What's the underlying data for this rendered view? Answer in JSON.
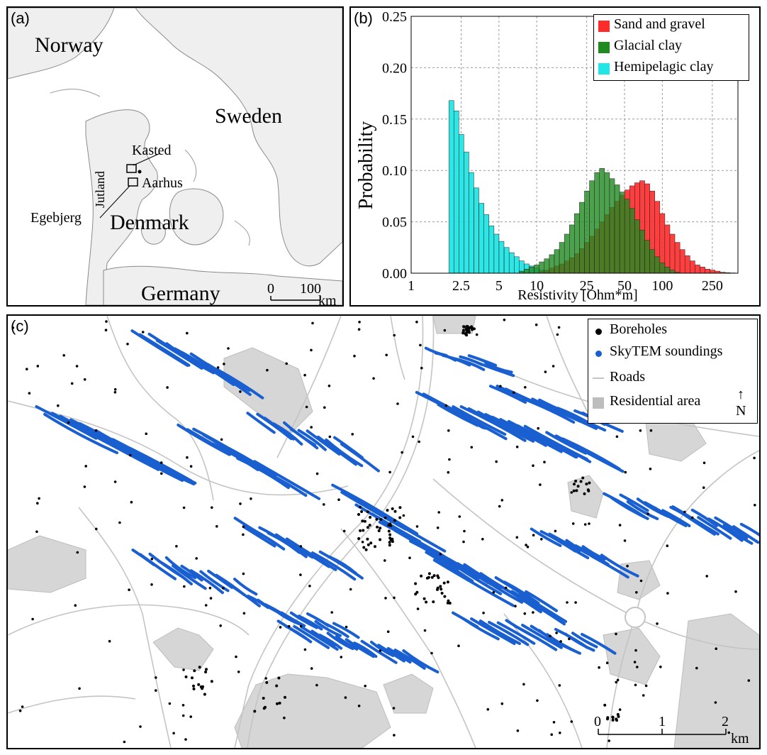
{
  "panel_a": {
    "label": "(a)",
    "places": {
      "norway": "Norway",
      "sweden": "Sweden",
      "denmark": "Denmark",
      "germany": "Germany",
      "jutland": "Jutland",
      "kasted": "Kasted",
      "aarhus": "Aarhus",
      "egebjerg": "Egebjerg"
    },
    "scale": {
      "zero": "0",
      "hundred": "100",
      "unit": "km"
    }
  },
  "panel_b": {
    "label": "(b)",
    "chart_data": {
      "type": "bar",
      "title": "",
      "xlabel": "Resistivity [Ohm*m]",
      "ylabel": "Probability",
      "x_scale": "log",
      "xlim": [
        1,
        400
      ],
      "ylim": [
        0,
        0.25
      ],
      "x_ticks": [
        "1",
        "2.5",
        "5",
        "10",
        "25",
        "50",
        "100",
        "250"
      ],
      "y_ticks": [
        "0.00",
        "0.05",
        "0.10",
        "0.15",
        "0.20",
        "0.25"
      ],
      "grid": true,
      "legend_position": "top-right",
      "colors": {
        "Sand and gravel": "#ff2a2a",
        "Glacial clay": "#1f8a1f",
        "Hemipelagic clay": "#22e6e6"
      },
      "series": [
        {
          "name": "Hemipelagic clay",
          "bin_left": [
            2.0,
            2.19,
            2.4,
            2.63,
            2.88,
            3.16,
            3.47,
            3.8,
            4.17,
            4.57,
            5.01,
            5.5,
            6.03,
            6.61,
            7.24,
            7.94,
            8.71,
            9.55,
            10.47,
            11.48
          ],
          "values": [
            0.168,
            0.158,
            0.135,
            0.118,
            0.098,
            0.083,
            0.068,
            0.057,
            0.046,
            0.038,
            0.031,
            0.025,
            0.02,
            0.016,
            0.012,
            0.009,
            0.007,
            0.005,
            0.003,
            0.002
          ]
        },
        {
          "name": "Glacial clay",
          "bin_left": [
            7.24,
            7.94,
            8.71,
            9.55,
            10.47,
            11.48,
            12.59,
            13.8,
            15.14,
            16.6,
            18.2,
            19.95,
            21.88,
            23.99,
            26.3,
            28.84,
            31.62,
            34.67,
            38.02,
            41.69,
            45.71,
            50.12,
            54.95,
            60.26,
            66.07,
            72.44,
            79.43,
            87.1,
            95.5,
            104.7,
            114.8,
            125.9
          ],
          "values": [
            0.002,
            0.004,
            0.006,
            0.008,
            0.011,
            0.014,
            0.018,
            0.023,
            0.03,
            0.038,
            0.047,
            0.058,
            0.069,
            0.08,
            0.09,
            0.098,
            0.102,
            0.098,
            0.092,
            0.086,
            0.079,
            0.072,
            0.063,
            0.052,
            0.042,
            0.032,
            0.023,
            0.016,
            0.01,
            0.006,
            0.003,
            0.001
          ]
        },
        {
          "name": "Sand and gravel",
          "bin_left": [
            10.47,
            11.48,
            12.59,
            13.8,
            15.14,
            16.6,
            18.2,
            19.95,
            21.88,
            23.99,
            26.3,
            28.84,
            31.62,
            34.67,
            38.02,
            41.69,
            45.71,
            50.12,
            54.95,
            60.26,
            66.07,
            72.44,
            79.43,
            87.1,
            95.5,
            104.7,
            114.8,
            125.9,
            138,
            151.4,
            166,
            182,
            199.5,
            218.8,
            239.9,
            263,
            288.4,
            316.2,
            346.7
          ],
          "values": [
            0.002,
            0.003,
            0.005,
            0.007,
            0.009,
            0.012,
            0.015,
            0.019,
            0.024,
            0.03,
            0.036,
            0.043,
            0.05,
            0.057,
            0.064,
            0.07,
            0.076,
            0.081,
            0.085,
            0.088,
            0.09,
            0.087,
            0.08,
            0.07,
            0.058,
            0.047,
            0.038,
            0.03,
            0.023,
            0.017,
            0.012,
            0.008,
            0.006,
            0.004,
            0.003,
            0.002,
            0.001,
            0.0005,
            0.0003
          ]
        }
      ]
    }
  },
  "panel_c": {
    "label": "(c)",
    "legend": {
      "boreholes": "Boreholes",
      "skytem": "SkyTEM soundings",
      "roads": "Roads",
      "residential": "Residential area",
      "north": "N"
    },
    "colors": {
      "boreholes": "#000000",
      "skytem": "#1a5fd0",
      "roads": "#c4c4c4",
      "residential": "#d6d6d6"
    },
    "scale": {
      "zero": "0",
      "one": "1",
      "two": "2",
      "unit": "km"
    }
  }
}
